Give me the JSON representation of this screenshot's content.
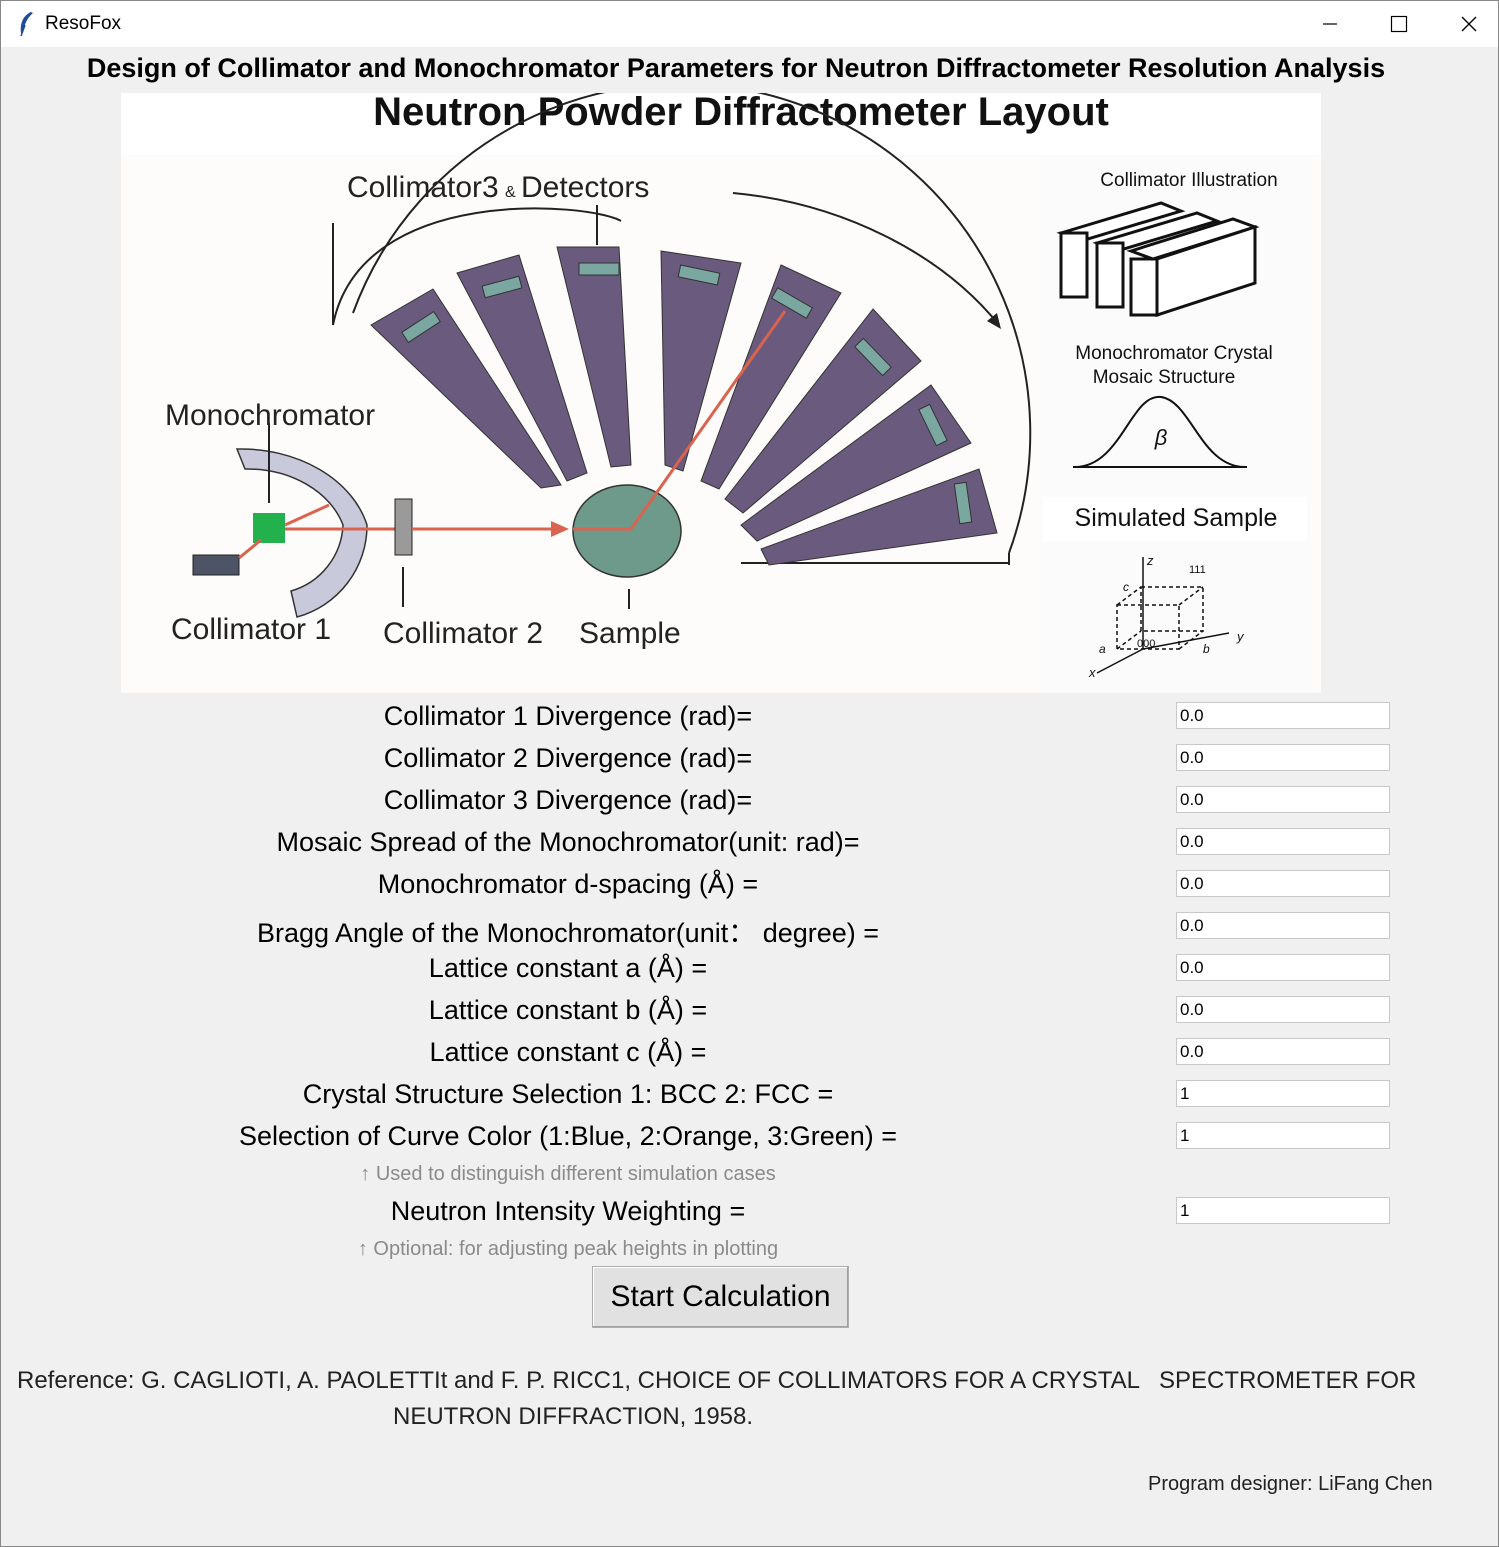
{
  "window": {
    "title": "ResoFox"
  },
  "header": "Design of Collimator and Monochromator Parameters for Neutron Diffractometer Resolution Analysis",
  "figure": {
    "title": "Neutron Powder Diffractometer Layout",
    "label_collimator3": "Collimator3",
    "label_amp": "&",
    "label_detectors": "Detectors",
    "label_monochromator": "Monochromator",
    "label_collimator1": "Collimator 1",
    "label_collimator2": "Collimator 2",
    "label_sample": "Sample",
    "collimator_illustration": "Collimator Illustration",
    "mosaic_line1": "Monochromator Crystal",
    "mosaic_line2": "Mosaic Structure",
    "beta": "β",
    "simulated_sample": "Simulated Sample",
    "axis_z": "z",
    "axis_y": "y",
    "axis_x": "x",
    "cell_a": "a",
    "cell_b": "b",
    "cell_c": "c",
    "point_000": "000",
    "point_111": "111"
  },
  "fields": [
    {
      "label": "Collimator 1 Divergence (rad)=",
      "value": "0.0"
    },
    {
      "label": "Collimator 2 Divergence (rad)=",
      "value": "0.0"
    },
    {
      "label": "Collimator 3 Divergence (rad)=",
      "value": "0.0"
    },
    {
      "label": "Mosaic Spread of the Monochromator(unit: rad)=",
      "value": "0.0"
    },
    {
      "label": "Monochromator d-spacing (Å) =",
      "value": "0.0"
    },
    {
      "label": "Bragg Angle of the Monochromator(unit： degree) =",
      "value": "0.0"
    },
    {
      "label": "Lattice constant a (Å) =",
      "value": "0.0"
    },
    {
      "label": "Lattice constant b (Å) =",
      "value": "0.0"
    },
    {
      "label": "Lattice constant c (Å) =",
      "value": "0.0"
    },
    {
      "label": "Crystal Structure Selection  1: BCC   2: FCC  =",
      "value": "1"
    },
    {
      "label": "Selection of Curve Color (1:Blue, 2:Orange, 3:Green) =",
      "value": "1"
    }
  ],
  "hint_color": "↑ Used to distinguish different simulation cases",
  "intensity": {
    "label": "Neutron Intensity Weighting =",
    "value": "1"
  },
  "hint_intensity": "↑ Optional: for adjusting peak heights in plotting",
  "start_button": "Start Calculation",
  "reference_line1": "Reference: G. CAGLIOTI, A. PAOLETTIt and F. P. RICC1, CHOICE OF COLLIMATORS FOR A CRYSTAL",
  "reference_line1b": "SPECTROMETER FOR",
  "reference_line2": "NEUTRON DIFFRACTION, 1958.",
  "designer": "Program designer: LiFang Chen",
  "colors": {
    "detector": "#6a5a7e",
    "beam": "#d9634f",
    "sample": "#6d9a8a",
    "mono_crystal": "#22b14c",
    "mono_shield": "#c9c9dc"
  }
}
